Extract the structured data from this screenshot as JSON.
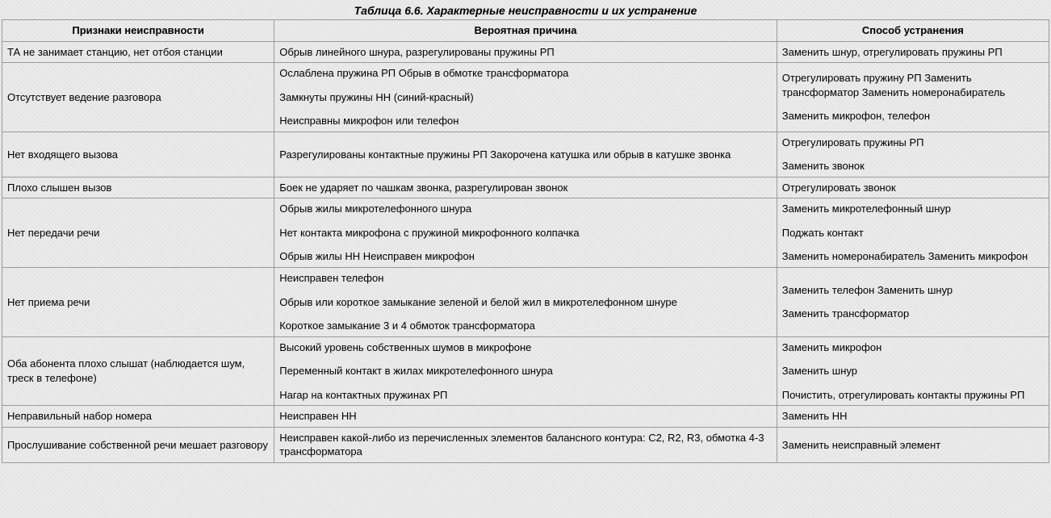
{
  "caption": "Таблица 6.6. Характерные неисправности и их устранение",
  "columns": [
    "Признаки неисправности",
    "Вероятная причина",
    "Способ устранения"
  ],
  "col_widths_percent": [
    26,
    48,
    26
  ],
  "border_color": "#9a9a9a",
  "background_color": "#ececec",
  "text_color": "#000000",
  "font_size_body": 13,
  "font_size_caption": 14,
  "rows": [
    {
      "symptom": [
        "ТА не занимает станцию, нет отбоя станции"
      ],
      "cause": [
        "Обрыв линейного шнура, разрегулированы пружины РП"
      ],
      "fix": [
        "Заменить шнур, отрегулировать пружины РП"
      ]
    },
    {
      "symptom": [
        "Отсутствует ведение разговора"
      ],
      "cause": [
        "Ослаблена пружина РП Обрыв в обмотке трансформатора",
        "Замкнуты пружины НН (синий-красный)",
        "Неисправны микрофон или телефон"
      ],
      "fix": [
        "Отрегулировать пружину РП Заменить трансформатор Заменить номеронабиратель",
        "Заменить микрофон, телефон"
      ]
    },
    {
      "symptom": [
        "Нет входящего вызова"
      ],
      "cause": [
        "Разрегулированы контактные пружины РП Закорочена катушка или обрыв в катушке звонка"
      ],
      "fix": [
        "Отрегулировать пружины РП",
        "Заменить звонок"
      ]
    },
    {
      "symptom": [
        "Плохо слышен вызов"
      ],
      "cause": [
        "Боек не ударяет по чашкам звонка, разрегулирован звонок"
      ],
      "fix": [
        "Отрегулировать звонок"
      ]
    },
    {
      "symptom": [
        "Нет передачи речи"
      ],
      "cause": [
        "Обрыв жилы микротелефонного шнура",
        "Нет контакта микрофона с пружиной микрофонного колпачка",
        "Обрыв жилы НН Неисправен микрофон"
      ],
      "fix": [
        "Заменить микротелефонный шнур",
        "Поджать контакт",
        "Заменить номеронабиратель Заменить микрофон"
      ]
    },
    {
      "symptom": [
        "Нет приема речи"
      ],
      "cause": [
        "Неисправен телефон",
        "Обрыв или короткое замыкание зеленой и белой жил в микротелефонном шнуре",
        "Короткое замыкание 3 и 4 обмоток трансформатора"
      ],
      "fix": [
        "Заменить телефон Заменить шнур",
        "Заменить трансформатор"
      ]
    },
    {
      "symptom": [
        "Оба абонента плохо слышат (наблюдается шум, треск в телефоне)"
      ],
      "cause": [
        "Высокий уровень собственных шумов в микрофоне",
        "Переменный контакт в жилах микротелефонного шнура",
        "Нагар на контактных пружинах РП"
      ],
      "fix": [
        "Заменить микрофон",
        "Заменить шнур",
        "Почистить, отрегулировать контакты пружины РП"
      ]
    },
    {
      "symptom": [
        "Неправильный набор номера"
      ],
      "cause": [
        "Неисправен НН"
      ],
      "fix": [
        "Заменить НН"
      ]
    },
    {
      "symptom": [
        "Прослушивание собственной речи мешает разговору"
      ],
      "cause": [
        "Неисправен какой-либо из перечисленных элементов балансного контура: C2, R2, R3, обмотка 4-3 трансформатора"
      ],
      "fix": [
        "Заменить неисправный элемент"
      ]
    }
  ]
}
